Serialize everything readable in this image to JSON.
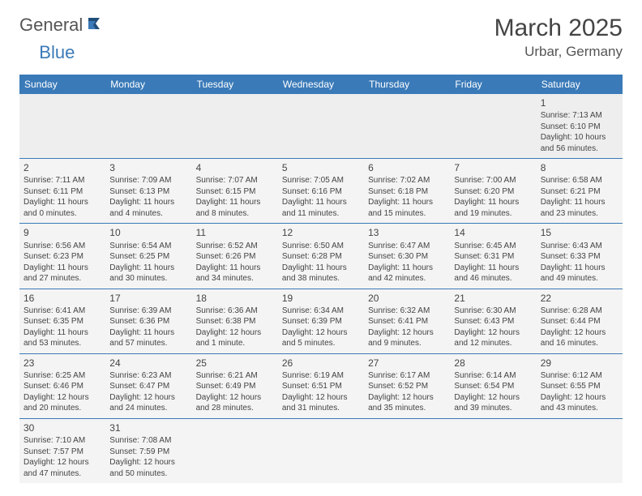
{
  "logo": {
    "general": "General",
    "blue": "Blue"
  },
  "title": "March 2025",
  "location": "Urbar, Germany",
  "colors": {
    "header_bg": "#3a7ab8",
    "header_text": "#ffffff",
    "cell_bg": "#f4f4f4",
    "firstrow_bg": "#eeeeee",
    "border": "#3a7ab8",
    "text": "#444444"
  },
  "weekdays": [
    "Sunday",
    "Monday",
    "Tuesday",
    "Wednesday",
    "Thursday",
    "Friday",
    "Saturday"
  ],
  "weeks": [
    [
      null,
      null,
      null,
      null,
      null,
      null,
      {
        "n": "1",
        "sr": "Sunrise: 7:13 AM",
        "ss": "Sunset: 6:10 PM",
        "dl": "Daylight: 10 hours and 56 minutes."
      }
    ],
    [
      {
        "n": "2",
        "sr": "Sunrise: 7:11 AM",
        "ss": "Sunset: 6:11 PM",
        "dl": "Daylight: 11 hours and 0 minutes."
      },
      {
        "n": "3",
        "sr": "Sunrise: 7:09 AM",
        "ss": "Sunset: 6:13 PM",
        "dl": "Daylight: 11 hours and 4 minutes."
      },
      {
        "n": "4",
        "sr": "Sunrise: 7:07 AM",
        "ss": "Sunset: 6:15 PM",
        "dl": "Daylight: 11 hours and 8 minutes."
      },
      {
        "n": "5",
        "sr": "Sunrise: 7:05 AM",
        "ss": "Sunset: 6:16 PM",
        "dl": "Daylight: 11 hours and 11 minutes."
      },
      {
        "n": "6",
        "sr": "Sunrise: 7:02 AM",
        "ss": "Sunset: 6:18 PM",
        "dl": "Daylight: 11 hours and 15 minutes."
      },
      {
        "n": "7",
        "sr": "Sunrise: 7:00 AM",
        "ss": "Sunset: 6:20 PM",
        "dl": "Daylight: 11 hours and 19 minutes."
      },
      {
        "n": "8",
        "sr": "Sunrise: 6:58 AM",
        "ss": "Sunset: 6:21 PM",
        "dl": "Daylight: 11 hours and 23 minutes."
      }
    ],
    [
      {
        "n": "9",
        "sr": "Sunrise: 6:56 AM",
        "ss": "Sunset: 6:23 PM",
        "dl": "Daylight: 11 hours and 27 minutes."
      },
      {
        "n": "10",
        "sr": "Sunrise: 6:54 AM",
        "ss": "Sunset: 6:25 PM",
        "dl": "Daylight: 11 hours and 30 minutes."
      },
      {
        "n": "11",
        "sr": "Sunrise: 6:52 AM",
        "ss": "Sunset: 6:26 PM",
        "dl": "Daylight: 11 hours and 34 minutes."
      },
      {
        "n": "12",
        "sr": "Sunrise: 6:50 AM",
        "ss": "Sunset: 6:28 PM",
        "dl": "Daylight: 11 hours and 38 minutes."
      },
      {
        "n": "13",
        "sr": "Sunrise: 6:47 AM",
        "ss": "Sunset: 6:30 PM",
        "dl": "Daylight: 11 hours and 42 minutes."
      },
      {
        "n": "14",
        "sr": "Sunrise: 6:45 AM",
        "ss": "Sunset: 6:31 PM",
        "dl": "Daylight: 11 hours and 46 minutes."
      },
      {
        "n": "15",
        "sr": "Sunrise: 6:43 AM",
        "ss": "Sunset: 6:33 PM",
        "dl": "Daylight: 11 hours and 49 minutes."
      }
    ],
    [
      {
        "n": "16",
        "sr": "Sunrise: 6:41 AM",
        "ss": "Sunset: 6:35 PM",
        "dl": "Daylight: 11 hours and 53 minutes."
      },
      {
        "n": "17",
        "sr": "Sunrise: 6:39 AM",
        "ss": "Sunset: 6:36 PM",
        "dl": "Daylight: 11 hours and 57 minutes."
      },
      {
        "n": "18",
        "sr": "Sunrise: 6:36 AM",
        "ss": "Sunset: 6:38 PM",
        "dl": "Daylight: 12 hours and 1 minute."
      },
      {
        "n": "19",
        "sr": "Sunrise: 6:34 AM",
        "ss": "Sunset: 6:39 PM",
        "dl": "Daylight: 12 hours and 5 minutes."
      },
      {
        "n": "20",
        "sr": "Sunrise: 6:32 AM",
        "ss": "Sunset: 6:41 PM",
        "dl": "Daylight: 12 hours and 9 minutes."
      },
      {
        "n": "21",
        "sr": "Sunrise: 6:30 AM",
        "ss": "Sunset: 6:43 PM",
        "dl": "Daylight: 12 hours and 12 minutes."
      },
      {
        "n": "22",
        "sr": "Sunrise: 6:28 AM",
        "ss": "Sunset: 6:44 PM",
        "dl": "Daylight: 12 hours and 16 minutes."
      }
    ],
    [
      {
        "n": "23",
        "sr": "Sunrise: 6:25 AM",
        "ss": "Sunset: 6:46 PM",
        "dl": "Daylight: 12 hours and 20 minutes."
      },
      {
        "n": "24",
        "sr": "Sunrise: 6:23 AM",
        "ss": "Sunset: 6:47 PM",
        "dl": "Daylight: 12 hours and 24 minutes."
      },
      {
        "n": "25",
        "sr": "Sunrise: 6:21 AM",
        "ss": "Sunset: 6:49 PM",
        "dl": "Daylight: 12 hours and 28 minutes."
      },
      {
        "n": "26",
        "sr": "Sunrise: 6:19 AM",
        "ss": "Sunset: 6:51 PM",
        "dl": "Daylight: 12 hours and 31 minutes."
      },
      {
        "n": "27",
        "sr": "Sunrise: 6:17 AM",
        "ss": "Sunset: 6:52 PM",
        "dl": "Daylight: 12 hours and 35 minutes."
      },
      {
        "n": "28",
        "sr": "Sunrise: 6:14 AM",
        "ss": "Sunset: 6:54 PM",
        "dl": "Daylight: 12 hours and 39 minutes."
      },
      {
        "n": "29",
        "sr": "Sunrise: 6:12 AM",
        "ss": "Sunset: 6:55 PM",
        "dl": "Daylight: 12 hours and 43 minutes."
      }
    ],
    [
      {
        "n": "30",
        "sr": "Sunrise: 7:10 AM",
        "ss": "Sunset: 7:57 PM",
        "dl": "Daylight: 12 hours and 47 minutes."
      },
      {
        "n": "31",
        "sr": "Sunrise: 7:08 AM",
        "ss": "Sunset: 7:59 PM",
        "dl": "Daylight: 12 hours and 50 minutes."
      },
      null,
      null,
      null,
      null,
      null
    ]
  ]
}
